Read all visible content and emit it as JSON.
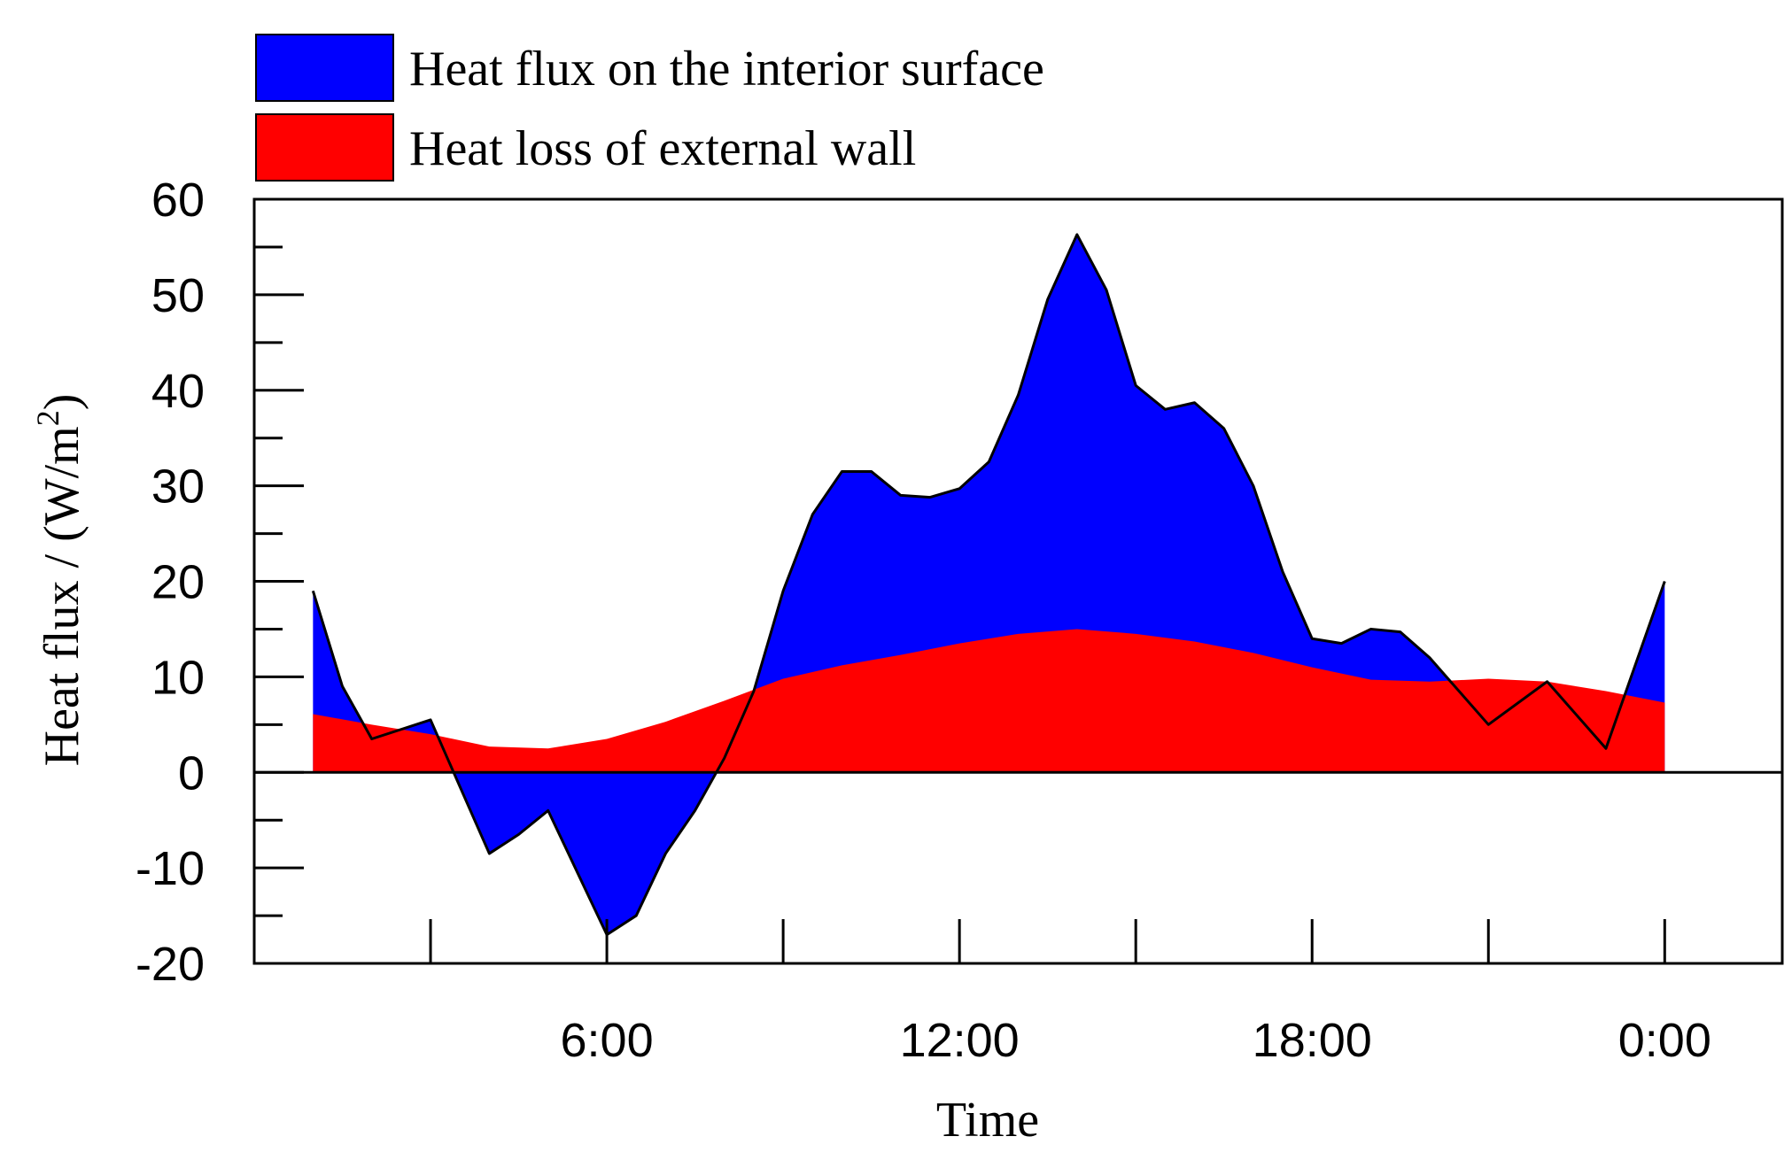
{
  "chart_data": {
    "type": "area",
    "title": "",
    "xlabel": "Time",
    "ylabel": "Heat flux / (W/m",
    "ylabel_sup": "2",
    "ylabel_close": ")",
    "xlim": [
      0,
      26
    ],
    "ylim": [
      -20,
      60
    ],
    "y_ticks": [
      60,
      50,
      40,
      30,
      20,
      10,
      0,
      -10,
      -20
    ],
    "x_tick_labels": [
      {
        "x": 6,
        "label": "6:00"
      },
      {
        "x": 12,
        "label": "12:00"
      },
      {
        "x": 18,
        "label": "18:00"
      },
      {
        "x": 24,
        "label": "0:00"
      }
    ],
    "x_major_ticks": [
      3,
      6,
      9,
      12,
      15,
      18,
      21,
      24
    ],
    "grid": false,
    "legend_position": "top",
    "series": [
      {
        "name": "Heat flux on the interior surface",
        "color": "#0000ff",
        "x": [
          1,
          1.5,
          2,
          3,
          4,
          4.5,
          5,
          6,
          6.5,
          7,
          7.5,
          8,
          8.5,
          9,
          9.5,
          10,
          10.5,
          11,
          11.5,
          12,
          12.5,
          13,
          13.5,
          14,
          14.5,
          15,
          15.5,
          16,
          16.5,
          17,
          17.5,
          18,
          18.5,
          19,
          19.5,
          20,
          21,
          22,
          23,
          24
        ],
        "values": [
          19,
          9,
          3.5,
          5.5,
          -8.5,
          -6.5,
          -4,
          -17,
          -15,
          -8.5,
          -4,
          1.5,
          8.5,
          19,
          27,
          31.5,
          31.5,
          29,
          28.8,
          29.7,
          32.5,
          39.5,
          49.5,
          56.3,
          50.5,
          40.5,
          38,
          38.7,
          36,
          30,
          21,
          14,
          13.5,
          15,
          14.7,
          12,
          5,
          9.5,
          2.5,
          20
        ]
      },
      {
        "name": "Heat loss of external wall",
        "color": "#ff0000",
        "x": [
          1,
          2,
          3,
          4,
          5,
          6,
          7,
          8,
          9,
          10,
          11,
          12,
          13,
          14,
          15,
          16,
          17,
          18,
          19,
          20,
          21,
          22,
          23,
          24
        ],
        "values": [
          6.1,
          5,
          4,
          2.7,
          2.5,
          3.5,
          5.3,
          7.5,
          9.8,
          11.2,
          12.3,
          13.5,
          14.5,
          15,
          14.5,
          13.7,
          12.5,
          11,
          9.7,
          9.5,
          9.8,
          9.5,
          8.5,
          7.3
        ]
      }
    ]
  }
}
